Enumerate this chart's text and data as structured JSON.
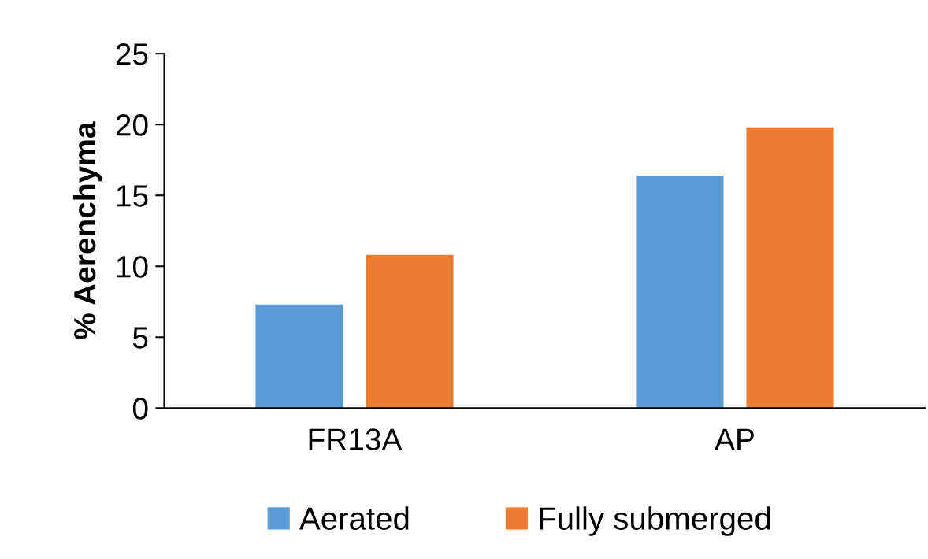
{
  "chart_data": {
    "type": "bar",
    "ylabel": "% Aerenchyma",
    "categories": [
      "FR13A",
      "AP"
    ],
    "series": [
      {
        "name": "Aerated",
        "color": "#5b9bd5",
        "values": [
          7.3,
          16.4
        ]
      },
      {
        "name": "Fully submerged",
        "color": "#ed7d31",
        "values": [
          10.8,
          19.8
        ]
      }
    ],
    "ylim": [
      0,
      25
    ],
    "yticks": [
      0,
      5,
      10,
      15,
      20,
      25
    ],
    "grid": false,
    "legend": "bottom"
  }
}
